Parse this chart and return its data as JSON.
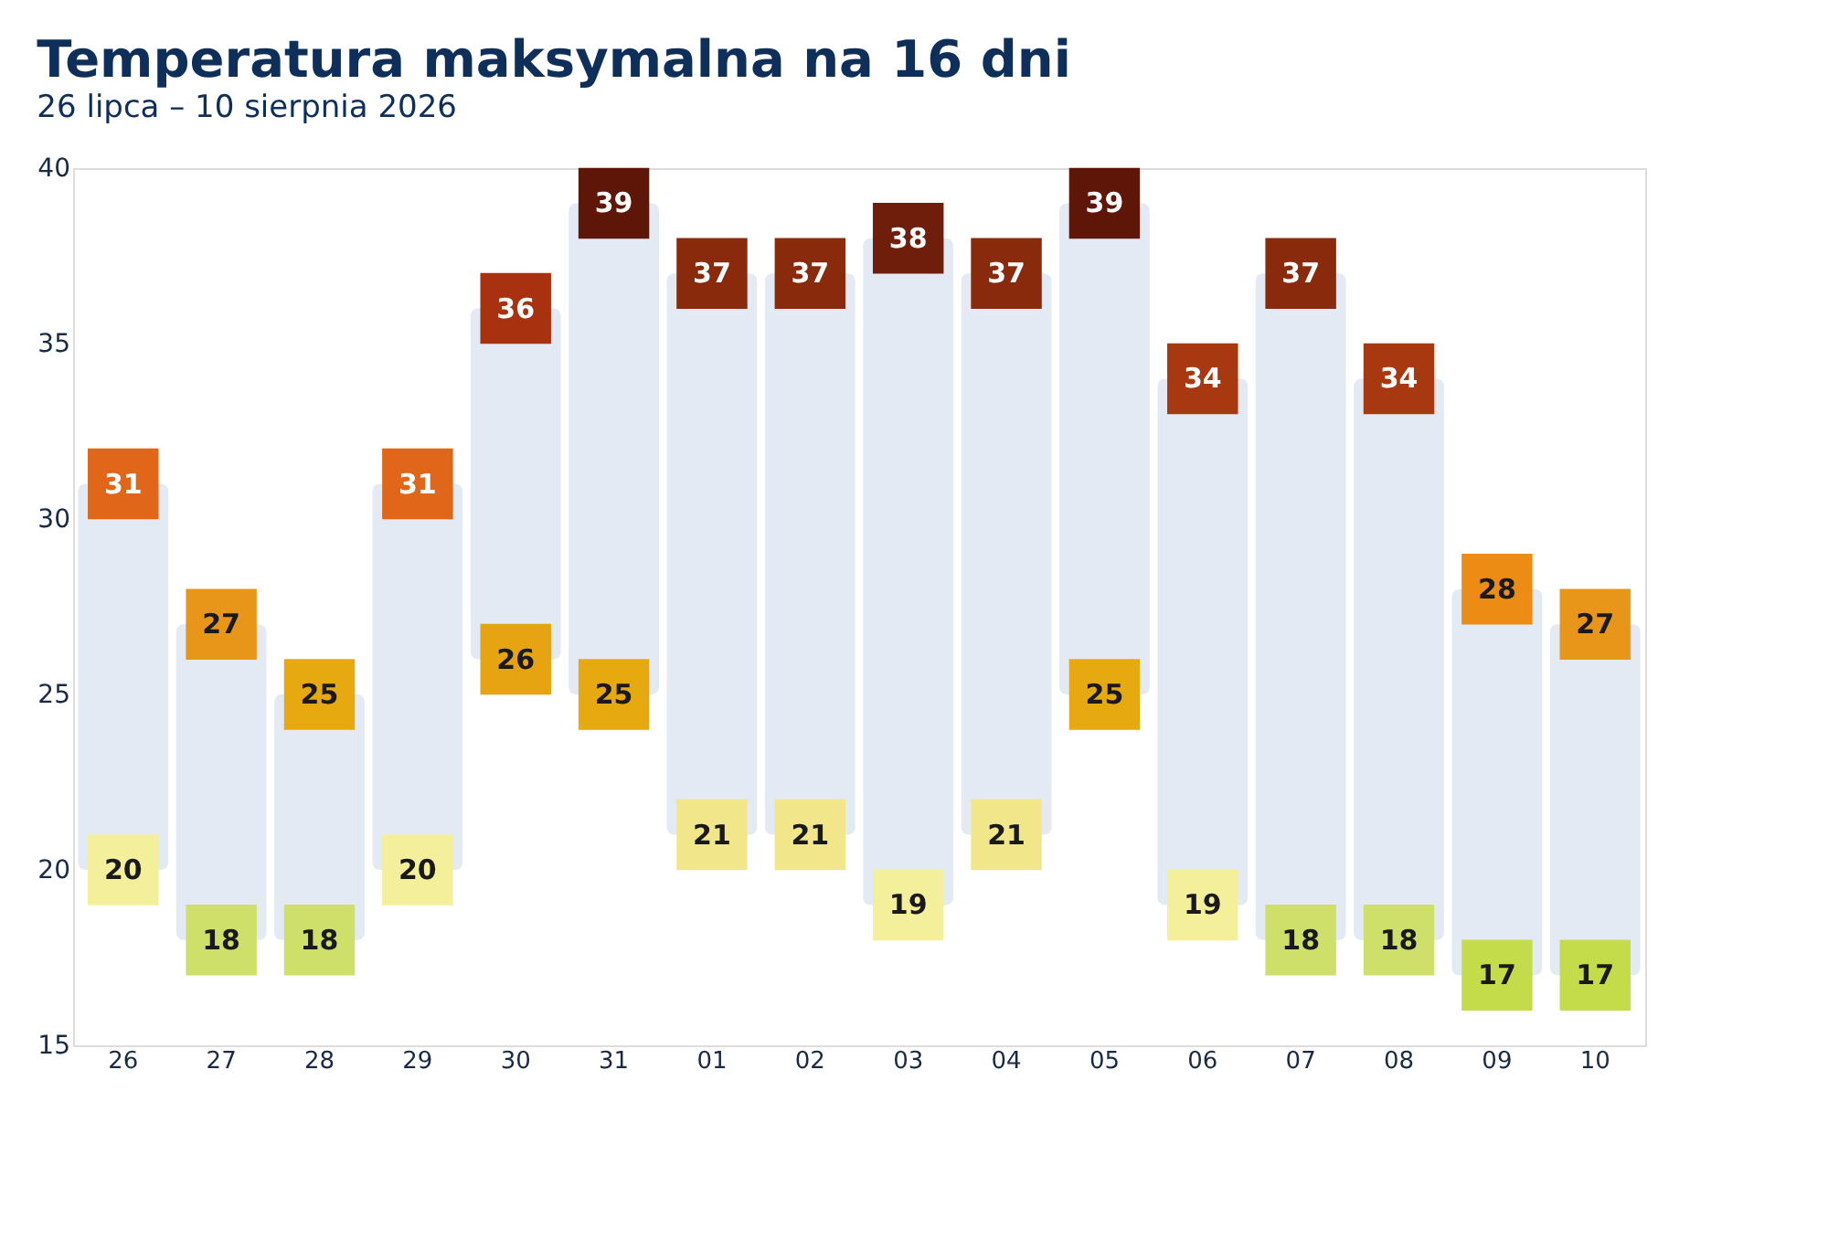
{
  "chart_data": {
    "type": "bar",
    "title": "Temperatura maksymalna na 16 dni",
    "subtitle": "26 lipca – 10 sierpnia 2026",
    "categories": [
      "26",
      "27",
      "28",
      "29",
      "30",
      "31",
      "01",
      "02",
      "03",
      "04",
      "05",
      "06",
      "07",
      "08",
      "09",
      "10"
    ],
    "ylim": [
      15,
      40
    ],
    "yticks": [
      15,
      20,
      25,
      30,
      35,
      40
    ],
    "grid": false,
    "series": [
      {
        "color": "#e3eaf3",
        "base": [
          20,
          18,
          18,
          20,
          26,
          25,
          21,
          21,
          19,
          21,
          25,
          19,
          18,
          18,
          17,
          17
        ],
        "values": [
          11,
          9,
          7,
          11,
          10,
          14,
          16,
          16,
          19,
          16,
          14,
          15,
          19,
          16,
          11,
          10
        ]
      },
      {
        "type": "scatter",
        "marker": "square",
        "values": [
          31,
          27,
          25,
          31,
          36,
          39,
          37,
          37,
          38,
          37,
          39,
          34,
          37,
          34,
          28,
          27
        ],
        "value_labels": [
          "31",
          "27",
          "25",
          "31",
          "36",
          "39",
          "37",
          "37",
          "38",
          "37",
          "39",
          "34",
          "37",
          "34",
          "28",
          "27"
        ],
        "colors": [
          "#e0661a",
          "#e8961a",
          "#e6aa10",
          "#e0661a",
          "#a8320f",
          "#5e1608",
          "#8a2a0c",
          "#8a2a0c",
          "#6e1e0a",
          "#8a2a0c",
          "#5e1608",
          "#a8380f",
          "#8a2a0c",
          "#a8380f",
          "#ec8c14",
          "#e8961a"
        ]
      },
      {
        "type": "scatter",
        "marker": "square",
        "values": [
          20,
          18,
          18,
          20,
          26,
          25,
          21,
          21,
          19,
          21,
          25,
          19,
          18,
          18,
          17,
          17
        ],
        "value_labels": [
          "20",
          "18",
          "18",
          "20",
          "26",
          "25",
          "21",
          "21",
          "19",
          "21",
          "25",
          "19",
          "18",
          "18",
          "17",
          "17"
        ],
        "colors": [
          "#f4ef9a",
          "#cfe06a",
          "#cfe06a",
          "#f4ef9a",
          "#e6a412",
          "#e6aa10",
          "#f2e68a",
          "#f2e68a",
          "#f4ef9a",
          "#f2e68a",
          "#e6aa10",
          "#f4ef9a",
          "#cfe06a",
          "#cfe06a",
          "#c5dc4a",
          "#c5dc4a"
        ]
      }
    ]
  }
}
